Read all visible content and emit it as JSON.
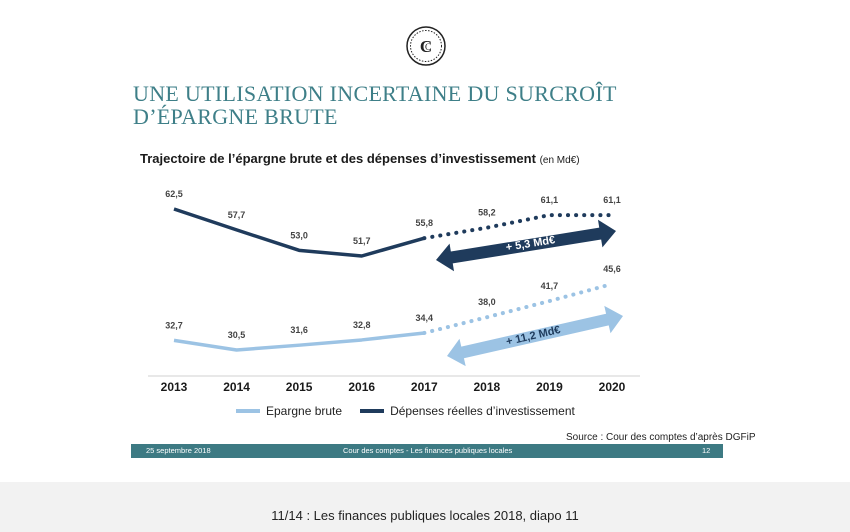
{
  "slide": {
    "title_line1": "UNE UTILISATION INCERTAINE DU SURCROÎT",
    "title_line2": "D’ÉPARGNE BRUTE",
    "subtitle": "Trajectoire de l’épargne brute et des dépenses d’investissement",
    "subtitle_unit": "(en Md€)",
    "source": "Source : Cour des comptes d’après DGFiP",
    "footer": {
      "date": "25 septembre 2018",
      "center": "Cour des comptes  - Les finances publiques locales",
      "page": "12"
    }
  },
  "colors": {
    "epargne": "#9cc3e4",
    "depenses": "#1f3b5c",
    "title": "#3e7f88",
    "footer_bg": "#3d7a83"
  },
  "chart_data": {
    "type": "line",
    "categories": [
      "2013",
      "2014",
      "2015",
      "2016",
      "2017",
      "2018",
      "2019",
      "2020"
    ],
    "series": [
      {
        "name": "Epargne brute",
        "values": [
          32.7,
          30.5,
          31.6,
          32.8,
          34.4,
          38.0,
          41.7,
          45.6
        ],
        "labels": [
          "32,7",
          "30,5",
          "31,6",
          "32,8",
          "34,4",
          "38,0",
          "41,7",
          "45,6"
        ],
        "projected_from": "2017"
      },
      {
        "name": "Dépenses réelles d’investissement",
        "values": [
          62.5,
          57.7,
          53.0,
          51.7,
          55.8,
          58.2,
          61.1,
          61.1
        ],
        "labels": [
          "62,5",
          "57,7",
          "53,0",
          "51,7",
          "55,8",
          "58,2",
          "61,1",
          "61,1"
        ],
        "projected_from": "2017"
      }
    ],
    "annotations": [
      "+ 5,3 Md€",
      "+ 11,2 Md€"
    ],
    "legend": "bottom",
    "grid": false
  },
  "caption": "11/14 : Les finances publiques locales 2018, diapo 11"
}
